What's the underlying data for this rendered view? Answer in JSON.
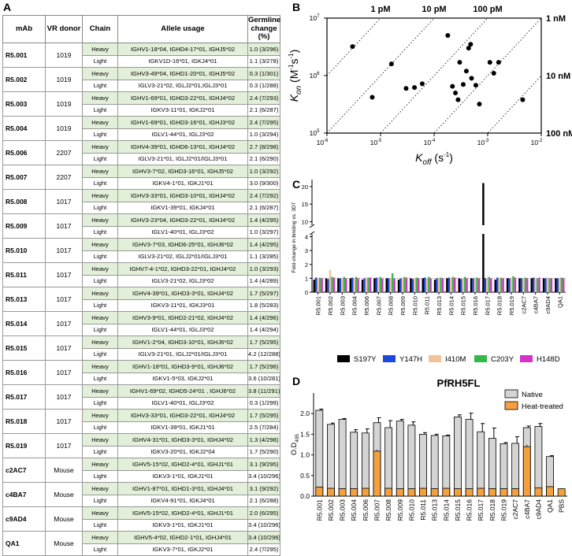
{
  "panels": {
    "a": "A",
    "b": "B",
    "c": "C",
    "d": "D"
  },
  "table": {
    "headers": [
      "mAb",
      "VR donor",
      "Chain",
      "Allele usage",
      "Germline change (%)"
    ],
    "rows": [
      {
        "mab": "R5.001",
        "donor": "1019",
        "heavy": {
          "chain": "Heavy",
          "allele": "IGHV1-18*04, IGHD4-17*01, IGHJ5*02",
          "change": "1.0 (3/296)"
        },
        "light": {
          "chain": "Light",
          "allele": "IGKV1D-16*01, IGKJ4*01",
          "change": "1.1 (3/278)"
        }
      },
      {
        "mab": "R5.002",
        "donor": "1019",
        "heavy": {
          "chain": "Heavy",
          "allele": "IGHV3-49*04, IGHD1-20*01, IGHJ5*02",
          "change": "0.3 (1/301)"
        },
        "light": {
          "chain": "Light",
          "allele": "IGLV3-21*02, IGLJ2*01,IGLJ3*01",
          "change": "0.3 (1/288)"
        }
      },
      {
        "mab": "R5.003",
        "donor": "1019",
        "heavy": {
          "chain": "Heavy",
          "allele": "IGHV1-69*01, IGHD3-22*01, IGHJ4*02",
          "change": "2.4 (7/293)"
        },
        "light": {
          "chain": "Light",
          "allele": "IGKV3-11*01, IGKJ2*01",
          "change": "2.1 (6/287)"
        }
      },
      {
        "mab": "R5.004",
        "donor": "1019",
        "heavy": {
          "chain": "Heavy",
          "allele": "IGHV1-69*01, IGHD3-16*01, IGHJ3*02",
          "change": "2.4 (7/295)"
        },
        "light": {
          "chain": "Light",
          "allele": "IGLV1-44*01, IGLJ3*02",
          "change": "1.0 (3/294)"
        }
      },
      {
        "mab": "R5.006",
        "donor": "2207",
        "heavy": {
          "chain": "Heavy",
          "allele": "IGHV4-39*01, IGHD6-13*01, IGHJ4*02",
          "change": "2.7 (8/298)"
        },
        "light": {
          "chain": "Light",
          "allele": "IGLV3-21*01, IGLJ2*01/IGLJ3*01",
          "change": "2.1 (6/290)"
        }
      },
      {
        "mab": "R5.007",
        "donor": "2207",
        "heavy": {
          "chain": "Heavy",
          "allele": "IGHV3-7*02, IGHD3-16*01, IGHJ5*02",
          "change": "1.0 (3/292)"
        },
        "light": {
          "chain": "Light",
          "allele": "IGKV4-1*01, IGKJ1*01",
          "change": "3.0 (9/300)"
        }
      },
      {
        "mab": "R5.008",
        "donor": "1017",
        "heavy": {
          "chain": "Heavy",
          "allele": "IGHV3-33*01, IGHD3-10*01, IGHJ4*02",
          "change": "2.4 (7/292)"
        },
        "light": {
          "chain": "Light",
          "allele": "IGKV1-39*01, IGKJ4*01",
          "change": "2.1 (6/287)"
        }
      },
      {
        "mab": "R5.009",
        "donor": "1017",
        "heavy": {
          "chain": "Heavy",
          "allele": "IGHV3-23*04, IGHD3-22*01, IGHJ4*02",
          "change": "1.4 (4/295)"
        },
        "light": {
          "chain": "Light",
          "allele": "IGLV1-40*01, IGLJ3*02",
          "change": "1.0 (3/297)"
        }
      },
      {
        "mab": "R5.010",
        "donor": "1017",
        "heavy": {
          "chain": "Heavy",
          "allele": "IGHV3-7*03, IGHD6-25*01, IGHJ6*02",
          "change": "1.4 (4/295)"
        },
        "light": {
          "chain": "Light",
          "allele": "IGLV3-21*02, IGLJ2*01/IGLJ3*01",
          "change": "1.1 (3/285)"
        }
      },
      {
        "mab": "R5.011",
        "donor": "1017",
        "heavy": {
          "chain": "Heavy",
          "allele": "IGHV7-4-1*02, IGHD3-22*01, IGHJ4*02",
          "change": "1.0 (3/293)"
        },
        "light": {
          "chain": "Light",
          "allele": "IGLV3-21*02, IGLJ3*02",
          "change": "1.4 (4/289)"
        }
      },
      {
        "mab": "R5.013",
        "donor": "1017",
        "heavy": {
          "chain": "Heavy",
          "allele": "IGHV4-39*01, IGHD3-3*01, IGHJ4*02",
          "change": "1.7 (5/297)"
        },
        "light": {
          "chain": "Light",
          "allele": "IGKV3-11*01, IGKJ3*01",
          "change": "1.8 (5/283)"
        }
      },
      {
        "mab": "R5.014",
        "donor": "1017",
        "heavy": {
          "chain": "Heavy",
          "allele": "IGHV3-9*01, IGHD2-21*02, IGHJ4*02",
          "change": "1.4 (4/296)"
        },
        "light": {
          "chain": "Light",
          "allele": "IGLV1-44*01, IGLJ3*02",
          "change": "1.4 (4/294)"
        }
      },
      {
        "mab": "R5.015",
        "donor": "1017",
        "heavy": {
          "chain": "Heavy",
          "allele": "IGHV1-2*04, IGHD3-10*01, IGHJ6*02",
          "change": "1.7 (5/295)"
        },
        "light": {
          "chain": "Light",
          "allele": "IGLV3-21*01, IGLJ2*01/IGLJ3*01",
          "change": "4.2 (12/288)"
        }
      },
      {
        "mab": "R5.016",
        "donor": "1017",
        "heavy": {
          "chain": "Heavy",
          "allele": "IGHV1-18*01, IGHD3-9*01, IGHJ6*02",
          "change": "1.7 (5/296)"
        },
        "light": {
          "chain": "Light",
          "allele": "IGKV1-5*03, IGKJ2*01",
          "change": "3.6 (10/281)"
        }
      },
      {
        "mab": "R5.017",
        "donor": "1017",
        "heavy": {
          "chain": "Heavy",
          "allele": "IGHV1-69*02, IGHD5-24*01 , IGHJ6*02",
          "change": "3.8 (11/291)"
        },
        "light": {
          "chain": "Light",
          "allele": "IGLV1-40*01, IGLJ3*02",
          "change": "0.3 (1/299)"
        }
      },
      {
        "mab": "R5.018",
        "donor": "1017",
        "heavy": {
          "chain": "Heavy",
          "allele": "IGHV3-33*01, IGHD3-22*01, IGHJ4*02",
          "change": "1.7 (5/295)"
        },
        "light": {
          "chain": "Light",
          "allele": "IGKV1-39*01, IGKJ1*01",
          "change": "2.5 (7/284)"
        }
      },
      {
        "mab": "R5.019",
        "donor": "1017",
        "heavy": {
          "chain": "Heavy",
          "allele": "IGHV4-31*01, IGHD3-3*01, IGHJ4*02",
          "change": "1.3 (4/298)"
        },
        "light": {
          "chain": "Light",
          "allele": "IGKV3-20*01, IGKJ2*04",
          "change": "1.7 (5/290)"
        }
      },
      {
        "mab": "c2AC7",
        "donor": "Mouse",
        "heavy": {
          "chain": "Heavy",
          "allele": "IGHV5-15*02, IGHD2-4*01, IGHJ1*01",
          "change": "3.1 (9/295)"
        },
        "light": {
          "chain": "Light",
          "allele": "IGKV3-1*01, IGKJ1*01",
          "change": "3.4 (10/296)"
        }
      },
      {
        "mab": "c4BA7",
        "donor": "Mouse",
        "heavy": {
          "chain": "Heavy",
          "allele": "IGHV1-87*01, IGHD1-3*01, IGHJ4*01",
          "change": "3.1 (9/292)"
        },
        "light": {
          "chain": "Light",
          "allele": "IGKV4-91*01, IGKJ4*01",
          "change": "2.1 (6/288)"
        }
      },
      {
        "mab": "c9AD4",
        "donor": "Mouse",
        "heavy": {
          "chain": "Heavy",
          "allele": "IGHV5-15*02, IGHD2-4*01, IGHJ1*01",
          "change": "2.0 (6/295)"
        },
        "light": {
          "chain": "Light",
          "allele": "IGKV3-1*01, IGKJ1*01",
          "change": "3.4 (10/296)"
        }
      },
      {
        "mab": "QA1",
        "donor": "Mouse",
        "heavy": {
          "chain": "Heavy",
          "allele": "IGHV5-4*02, IGHD2-1*01, IGHJ4*01",
          "change": "3.4 (10/296)"
        },
        "light": {
          "chain": "Light",
          "allele": "IGKV3-7*01, IGKJ2*01",
          "change": "2.4 (7/295)"
        }
      }
    ]
  },
  "chart_data": [
    {
      "type": "scatter",
      "panel": "B",
      "xlabel_main": "K",
      "xlabel_sub": "off",
      "xlabel_unit": " (s",
      "ylabel_main": "K",
      "ylabel_sub": "on",
      "ylabel_unit": " (M",
      "x_ticks": [
        {
          "v": -6,
          "base": "10",
          "exp": "-6"
        },
        {
          "v": -5,
          "base": "10",
          "exp": "-5"
        },
        {
          "v": -4,
          "base": "10",
          "exp": "-4"
        },
        {
          "v": -3,
          "base": "10",
          "exp": "-3"
        },
        {
          "v": -2,
          "base": "10",
          "exp": "-2"
        }
      ],
      "y_ticks": [
        {
          "v": 5,
          "base": "10",
          "exp": "5"
        },
        {
          "v": 6,
          "base": "10",
          "exp": "6"
        },
        {
          "v": 7,
          "base": "10",
          "exp": "7"
        }
      ],
      "xlim_log10": [
        -6,
        -2
      ],
      "ylim_log10": [
        5,
        7
      ],
      "kd_lines": [
        {
          "log10_kd": -12,
          "label": "1 pM",
          "pos": "top"
        },
        {
          "log10_kd": -11,
          "label": "10 pM",
          "pos": "top"
        },
        {
          "log10_kd": -10,
          "label": "100 pM",
          "pos": "top"
        },
        {
          "log10_kd": -9,
          "label": "1 nM",
          "pos": "right"
        },
        {
          "log10_kd": -8,
          "label": "10 nM",
          "pos": "right"
        },
        {
          "log10_kd": -7,
          "label": "100 nM",
          "pos": "right"
        }
      ],
      "points": [
        {
          "koff": 3e-06,
          "kon": 3200000.0
        },
        {
          "koff": 7e-06,
          "kon": 420000.0
        },
        {
          "koff": 1.6e-05,
          "kon": 1600000.0
        },
        {
          "koff": 3e-05,
          "kon": 600000.0
        },
        {
          "koff": 4.3e-05,
          "kon": 620000.0
        },
        {
          "koff": 6e-05,
          "kon": 720000.0
        },
        {
          "koff": 0.00018,
          "kon": 5000000.0
        },
        {
          "koff": 0.00022,
          "kon": 650000.0
        },
        {
          "koff": 0.00025,
          "kon": 500000.0
        },
        {
          "koff": 0.00028,
          "kon": 380000.0
        },
        {
          "koff": 0.0003,
          "kon": 1700000.0
        },
        {
          "koff": 0.00035,
          "kon": 700000.0
        },
        {
          "koff": 0.0004,
          "kon": 1200000.0
        },
        {
          "koff": 0.00044,
          "kon": 3000000.0
        },
        {
          "koff": 0.00048,
          "kon": 3500000.0
        },
        {
          "koff": 0.0005,
          "kon": 900000.0
        },
        {
          "koff": 0.0006,
          "kon": 680000.0
        },
        {
          "koff": 0.0007,
          "kon": 320000.0
        },
        {
          "koff": 0.0011,
          "kon": 1700000.0
        },
        {
          "koff": 0.0013,
          "kon": 1100000.0
        },
        {
          "koff": 0.0016,
          "kon": 1700000.0
        },
        {
          "koff": 0.0045,
          "kon": 380000.0
        }
      ]
    },
    {
      "type": "bar",
      "panel": "C",
      "ylabel": "Fold-change in binding vs. 3D7",
      "y_ticks_lower": [
        "0",
        "1",
        "2",
        "3",
        "4"
      ],
      "y_ticks_upper": [
        "10",
        "15",
        "20"
      ],
      "ylim_lower": [
        0,
        4.2
      ],
      "ylim_upper": [
        9,
        22
      ],
      "categories": [
        "R5.001",
        "R5.002",
        "R5.003",
        "R5.004",
        "R5.006",
        "R5.007",
        "R5.008",
        "R5.009",
        "R5.010",
        "R5.011",
        "R5.013",
        "R5.014",
        "R5.015",
        "R5.016",
        "R5.017",
        "R5.018",
        "R5.019",
        "c2AC7",
        "c4BA7",
        "c9AD4",
        "QA1"
      ],
      "series": [
        {
          "name": "S197Y",
          "color": "#000000",
          "values": [
            0.9,
            1.0,
            1.0,
            1.0,
            0.9,
            1.0,
            1.0,
            0.9,
            1.0,
            1.0,
            0.9,
            1.0,
            1.0,
            1.0,
            21.0,
            0.9,
            1.0,
            1.0,
            1.0,
            1.0,
            1.0
          ]
        },
        {
          "name": "Y147H",
          "color": "#1b46e0",
          "values": [
            1.05,
            0.95,
            1.0,
            1.05,
            1.0,
            1.05,
            1.0,
            1.0,
            0.95,
            1.05,
            1.0,
            1.05,
            0.95,
            1.0,
            1.0,
            1.05,
            1.0,
            1.0,
            1.05,
            1.0,
            1.0
          ]
        },
        {
          "name": "I410M",
          "color": "#f6c197",
          "values": [
            1.0,
            1.6,
            1.0,
            1.0,
            1.05,
            1.0,
            1.0,
            1.05,
            1.0,
            1.0,
            1.05,
            1.0,
            1.0,
            1.05,
            1.0,
            1.0,
            1.05,
            1.0,
            1.0,
            1.05,
            1.0
          ]
        },
        {
          "name": "C203Y",
          "color": "#34b84a",
          "values": [
            1.05,
            1.1,
            1.1,
            1.1,
            1.05,
            1.1,
            1.35,
            1.1,
            1.05,
            1.1,
            1.05,
            1.1,
            1.1,
            1.05,
            1.1,
            1.05,
            1.15,
            1.05,
            1.0,
            1.0,
            1.05
          ]
        },
        {
          "name": "H148D",
          "color": "#d433c8",
          "values": [
            1.0,
            1.05,
            1.0,
            1.0,
            1.05,
            1.0,
            1.0,
            1.05,
            1.0,
            1.0,
            1.0,
            1.05,
            1.0,
            1.0,
            1.0,
            1.0,
            1.05,
            1.0,
            1.05,
            1.0,
            1.0
          ]
        }
      ]
    },
    {
      "type": "bar",
      "panel": "D",
      "title": "PfRH5FL",
      "ylabel": "O.D",
      "ylabel_sub": "405",
      "y_ticks": [
        "0.0",
        "0.5",
        "1.0",
        "1.5",
        "2.0"
      ],
      "ylim": [
        0,
        2.5
      ],
      "categories": [
        "R5.001",
        "R5.002",
        "R5.003",
        "R5.004",
        "R5.006",
        "R5.007",
        "R5.008",
        "R5.009",
        "R5.010",
        "R5.011",
        "R5.013",
        "R5.014",
        "R5.015",
        "R5.016",
        "R5.017",
        "R5.018",
        "R5.019",
        "c2AC7",
        "c4BA7",
        "c9AD4",
        "QA1",
        "PBS"
      ],
      "series": [
        {
          "name": "Native",
          "color": "#d4d4d4",
          "values": [
            2.08,
            1.74,
            1.86,
            1.55,
            1.53,
            1.78,
            1.66,
            1.82,
            1.72,
            1.5,
            1.47,
            1.46,
            1.92,
            1.86,
            1.56,
            1.4,
            1.27,
            1.28,
            1.66,
            1.69,
            0.96,
            0.0
          ],
          "errors": [
            0.03,
            0.03,
            0.02,
            0.06,
            0.1,
            0.12,
            0.17,
            0.04,
            0.08,
            0.04,
            0.03,
            0.02,
            0.05,
            0.15,
            0.2,
            0.25,
            0.03,
            0.16,
            0.04,
            0.07,
            0.02,
            0.0
          ]
        },
        {
          "name": "Heat-treated",
          "color": "#f5a03e",
          "values": [
            0.22,
            0.19,
            0.18,
            0.18,
            0.19,
            1.09,
            0.19,
            0.18,
            0.18,
            0.19,
            0.18,
            0.19,
            0.18,
            0.18,
            0.19,
            0.18,
            0.18,
            0.18,
            1.2,
            0.2,
            0.23,
            0.18
          ],
          "errors": [
            0.01,
            0.01,
            0.01,
            0.01,
            0.01,
            0.03,
            0.01,
            0.01,
            0.01,
            0.01,
            0.01,
            0.01,
            0.01,
            0.01,
            0.01,
            0.01,
            0.01,
            0.01,
            0.05,
            0.01,
            0.01,
            0.01
          ]
        }
      ]
    }
  ]
}
